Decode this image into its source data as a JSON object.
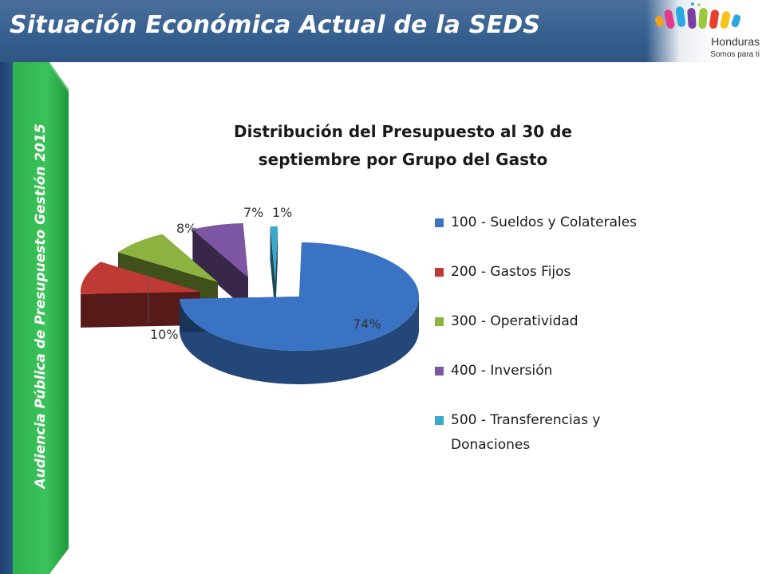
{
  "header": {
    "title": "Situación Económica Actual de la SEDS",
    "brand_name": "Honduras",
    "brand_tagline": "Somos para ti",
    "background": "#36608f"
  },
  "sidebar": {
    "vertical_text": "Audiencia Pública de Presupuesto Gestión 2015",
    "accent_color": "#2db64c"
  },
  "chart_data": {
    "type": "pie",
    "title_lines": [
      "Distribución del Presupuesto al 30 de",
      "septiembre por Grupo del Gasto"
    ],
    "style": "3d-exploded",
    "legend_position": "right",
    "categories": [
      "100 - Sueldos y Colaterales",
      "200 - Gastos Fijos",
      "300 - Operatividad",
      "400 - Inversión",
      "500 - Transferencias y Donaciones"
    ],
    "values": [
      74,
      10,
      8,
      7,
      1
    ],
    "data_labels": [
      "74%",
      "10%",
      "8%",
      "7%",
      "1%"
    ],
    "colors": [
      "#3a73c4",
      "#c03a35",
      "#8cb23f",
      "#7d56a3",
      "#3aa7cd"
    ],
    "legend_lines": [
      [
        "100 - Sueldos y Colaterales"
      ],
      [
        "200 - Gastos Fijos"
      ],
      [
        "300 - Operatividad"
      ],
      [
        "400 - Inversión"
      ],
      [
        "500 - Transferencias y",
        "Donaciones"
      ]
    ]
  }
}
